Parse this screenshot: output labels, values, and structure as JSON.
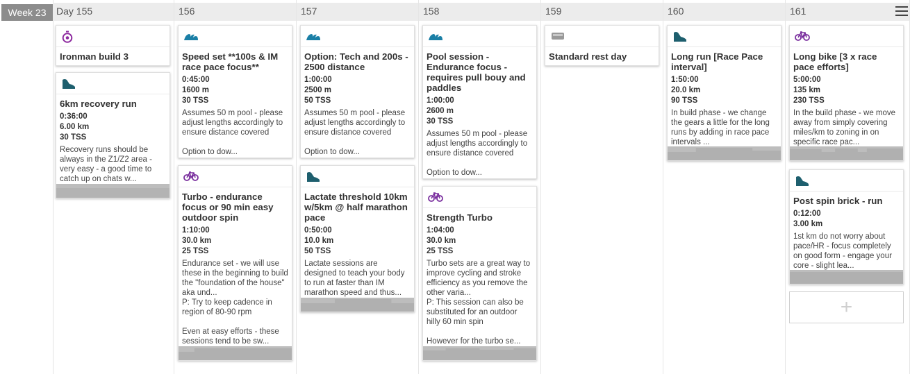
{
  "week_label": "Week 23",
  "days": [
    "Day 155",
    "156",
    "157",
    "158",
    "159",
    "160",
    "161"
  ],
  "colors": {
    "swim": "#1a7fa6",
    "bike": "#7a2f9e",
    "run": "#1e5f6e",
    "event": "#8e2ba0",
    "rest": "#999999"
  },
  "cards": {
    "d155_event": {
      "icon": "stopwatch-icon",
      "title": "Ironman build 3"
    },
    "d155_run": {
      "icon": "running-shoe-icon",
      "title": "6km recovery run",
      "duration": "0:36:00",
      "distance": "6.00 km",
      "tss": "30 TSS",
      "desc": "Recovery runs should be always in the Z1/Z2 area - very easy - a good time to catch up on chats w..."
    },
    "d156_swim": {
      "icon": "swim-wave-icon",
      "title": "Speed set **100s & IM race pace focus**",
      "duration": "0:45:00",
      "distance": "1600 m",
      "tss": "30 TSS",
      "desc": "Assumes 50 m pool - please adjust lengths accordingly to ensure distance covered\n\nOption to dow..."
    },
    "d156_bike": {
      "icon": "bicycle-icon",
      "title": "Turbo - endurance focus or 90 min easy outdoor spin",
      "duration": "1:10:00",
      "distance": "30.0 km",
      "tss": "25 TSS",
      "desc": "Endurance set - we will use these in the beginning to build the \"foundation of the house\" aka und...\nP: Try to keep cadence in region of 80-90 rpm\n\nEven at easy efforts - these sessions tend to be sw..."
    },
    "d157_swim": {
      "icon": "swim-wave-icon",
      "title": "Option: Tech and 200s - 2500 distance",
      "duration": "1:00:00",
      "distance": "2500 m",
      "tss": "50 TSS",
      "desc": "Assumes 50 m pool - please adjust lengths accordingly to ensure distance covered\n\nOption to dow..."
    },
    "d157_run": {
      "icon": "running-shoe-icon",
      "title": "Lactate threshold 10km w/5km @ half marathon pace",
      "duration": "0:50:00",
      "distance": "10.0 km",
      "tss": "50 TSS",
      "desc": "Lactate sessions are designed to teach your body to run at faster than IM marathon speed and thus..."
    },
    "d158_swim": {
      "icon": "swim-wave-icon",
      "title": "Pool session - Endurance focus - requires pull bouy and paddles",
      "duration": "1:00:00",
      "distance": "2600 m",
      "tss": "30 TSS",
      "desc": "Assumes 50 m pool - please adjust lengths accordingly to ensure distance covered\n\nOption to dow..."
    },
    "d158_bike": {
      "icon": "bicycle-icon",
      "title": "Strength Turbo",
      "duration": "1:04:00",
      "distance": "30.0 km",
      "tss": "25 TSS",
      "desc": "Turbo sets are a great way to improve cycling and stroke efficiency as you remove the other varia...\nP: This session can also be substituted for an outdoor hilly 60 min spin\n\nHowever for the turbo se..."
    },
    "d159_rest": {
      "icon": "rest-bed-icon",
      "title": "Standard rest day"
    },
    "d160_run": {
      "icon": "running-shoe-icon",
      "title": "Long run [Race Pace interval]",
      "duration": "1:50:00",
      "distance": "20.0 km",
      "tss": "90 TSS",
      "desc": "In build phase - we change the gears a little for the long runs by adding in race pace intervals ..."
    },
    "d161_bike": {
      "icon": "bicycle-icon",
      "title": "Long bike [3 x race pace efforts]",
      "duration": "5:00:00",
      "distance": "135 km",
      "tss": "230 TSS",
      "desc": "In the build phase - we move away from simply covering miles/km to zoning in on specific race pac..."
    },
    "d161_run": {
      "icon": "running-shoe-icon",
      "title": "Post spin brick - run",
      "duration": "0:12:00",
      "distance": "3.00 km",
      "desc": "1st km do not worry about pace/HR - focus completely on good form - engage your core - slight lea..."
    }
  },
  "add_label": "+"
}
